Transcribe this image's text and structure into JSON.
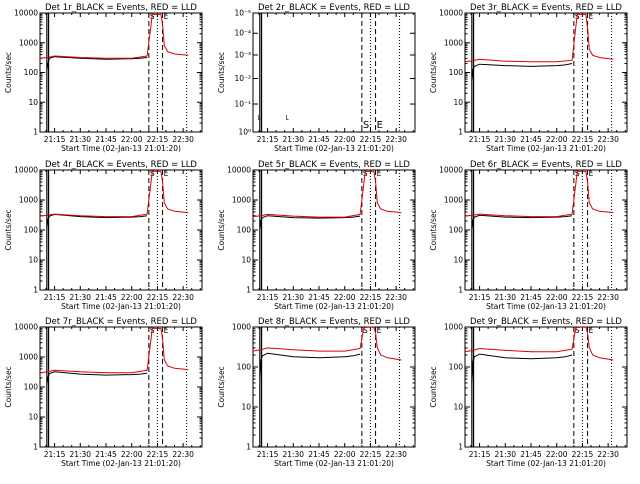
{
  "figure": {
    "xtick_labels": [
      "21:15",
      "21:30",
      "21:45",
      "22:00",
      "22:15",
      "22:30"
    ],
    "xtick_minutes": [
      0,
      15,
      30,
      45,
      60,
      75
    ],
    "xlabel": "Start Time (02-Jan-13 21:01:20)",
    "ylabel": "Counts/sec",
    "series_colors": {
      "black": "#000000",
      "red": "#dd0000"
    },
    "markers": {
      "start_label": "S",
      "end_label": "E"
    }
  },
  "chart_data": [
    {
      "type": "line",
      "title": "Det 1r_BLACK = Events, RED = LLD",
      "ylog": true,
      "ylim": [
        1,
        10000
      ],
      "yticks": [
        1,
        10,
        100,
        1000,
        10000
      ],
      "ytick_labels": [
        "1",
        "10",
        "100",
        "1000",
        "10000"
      ],
      "xlim": [
        -8.5,
        86
      ],
      "grid": false,
      "legend": "in title",
      "vlines_solid": [
        -4.5,
        -3.5
      ],
      "vlines_dashed": [
        55,
        63
      ],
      "vlines_dotted": [
        60,
        77
      ],
      "series": [
        {
          "name": "BLACK",
          "color": "black",
          "x": [
            -4.5,
            -3.8,
            -3,
            0,
            15,
            30,
            45,
            50,
            54
          ],
          "y": [
            120,
            210,
            300,
            340,
            300,
            280,
            290,
            300,
            320
          ]
        },
        {
          "name": "RED",
          "color": "red",
          "x": [
            -8.5,
            -4,
            0,
            15,
            30,
            45,
            54,
            56,
            57,
            62,
            63,
            64,
            66,
            70,
            78
          ],
          "y": [
            300,
            320,
            360,
            320,
            300,
            300,
            360,
            3000,
            9000,
            9000,
            4000,
            800,
            500,
            420,
            380
          ]
        }
      ]
    },
    {
      "type": "line",
      "title": "Det 2r_BLACK = Events, RED = LLD",
      "ylog": true,
      "ylim": [
        1,
        1.5
      ],
      "yticks": [
        1.0,
        1.1,
        1.2,
        1.3,
        1.4,
        1.5
      ],
      "ytick_labels": [
        "10⁰",
        "10⁻¹",
        "10⁻²",
        "10⁻³",
        "10⁻⁴",
        "10⁻⁵"
      ],
      "xlim": [
        -8.5,
        86
      ],
      "grid": false,
      "legend": "in title",
      "vlines_solid": [
        -4.5,
        -3.5
      ],
      "vlines_dashed": [
        55,
        63
      ],
      "vlines_dotted": [
        60,
        77
      ],
      "series": []
    },
    {
      "type": "line",
      "title": "Det 3r_BLACK = Events, RED = LLD",
      "ylog": true,
      "ylim": [
        1,
        10000
      ],
      "yticks": [
        1,
        10,
        100,
        1000,
        10000
      ],
      "ytick_labels": [
        "1",
        "10",
        "100",
        "1000",
        "10000"
      ],
      "xlim": [
        -8.5,
        86
      ],
      "grid": false,
      "legend": "in title",
      "vlines_solid": [
        -4.5,
        -3.5
      ],
      "vlines_dashed": [
        55,
        63
      ],
      "vlines_dotted": [
        60,
        77
      ],
      "series": [
        {
          "name": "BLACK",
          "color": "black",
          "x": [
            -4.5,
            -3.8,
            -3,
            0,
            15,
            30,
            45,
            50,
            54
          ],
          "y": [
            50,
            130,
            160,
            190,
            170,
            160,
            170,
            180,
            200
          ]
        },
        {
          "name": "RED",
          "color": "red",
          "x": [
            -8.5,
            -4,
            0,
            15,
            30,
            45,
            54,
            56,
            57,
            62,
            63,
            64,
            66,
            70,
            78
          ],
          "y": [
            230,
            250,
            280,
            240,
            230,
            230,
            260,
            3000,
            9000,
            9000,
            3000,
            600,
            380,
            320,
            280
          ]
        }
      ]
    },
    {
      "type": "line",
      "title": "Det 4r_BLACK = Events, RED = LLD",
      "ylog": true,
      "ylim": [
        1,
        10000
      ],
      "yticks": [
        1,
        10,
        100,
        1000,
        10000
      ],
      "ytick_labels": [
        "1",
        "10",
        "100",
        "1000",
        "10000"
      ],
      "xlim": [
        -8.5,
        86
      ],
      "grid": false,
      "legend": "in title",
      "vlines_solid": [
        -4.5,
        -3.5
      ],
      "vlines_dashed": [
        55,
        63
      ],
      "vlines_dotted": [
        60,
        77
      ],
      "series": [
        {
          "name": "BLACK",
          "color": "black",
          "x": [
            -4.5,
            -3.8,
            -3,
            0,
            15,
            30,
            45,
            50,
            54
          ],
          "y": [
            120,
            230,
            290,
            330,
            280,
            260,
            270,
            280,
            300
          ]
        },
        {
          "name": "RED",
          "color": "red",
          "x": [
            -8.5,
            -4,
            0,
            15,
            30,
            45,
            54,
            56,
            57,
            62,
            63,
            64,
            66,
            70,
            78
          ],
          "y": [
            290,
            310,
            340,
            300,
            280,
            280,
            340,
            3000,
            9000,
            9000,
            4000,
            800,
            500,
            420,
            380
          ]
        }
      ]
    },
    {
      "type": "line",
      "title": "Det 5r_BLACK = Events, RED = LLD",
      "ylog": true,
      "ylim": [
        1,
        10000
      ],
      "yticks": [
        1,
        10,
        100,
        1000,
        10000
      ],
      "ytick_labels": [
        "1",
        "10",
        "100",
        "1000",
        "10000"
      ],
      "xlim": [
        -8.5,
        86
      ],
      "grid": false,
      "legend": "in title",
      "vlines_solid": [
        -4.5,
        -3.5
      ],
      "vlines_dashed": [
        55,
        63
      ],
      "vlines_dotted": [
        60,
        77
      ],
      "series": [
        {
          "name": "BLACK",
          "color": "black",
          "x": [
            -4.5,
            -3.8,
            -3,
            0,
            15,
            30,
            45,
            50,
            54
          ],
          "y": [
            100,
            210,
            260,
            300,
            260,
            250,
            260,
            270,
            290
          ]
        },
        {
          "name": "RED",
          "color": "red",
          "x": [
            -8.5,
            -4,
            0,
            15,
            30,
            45,
            54,
            56,
            57,
            62,
            63,
            64,
            66,
            70,
            78
          ],
          "y": [
            280,
            300,
            330,
            290,
            270,
            270,
            330,
            3000,
            9000,
            9000,
            4000,
            800,
            500,
            420,
            380
          ]
        }
      ]
    },
    {
      "type": "line",
      "title": "Det 6r_BLACK = Events, RED = LLD",
      "ylog": true,
      "ylim": [
        1,
        10000
      ],
      "yticks": [
        1,
        10,
        100,
        1000,
        10000
      ],
      "ytick_labels": [
        "1",
        "10",
        "100",
        "1000",
        "10000"
      ],
      "xlim": [
        -8.5,
        86
      ],
      "grid": false,
      "legend": "in title",
      "vlines_solid": [
        -4.5,
        -3.5
      ],
      "vlines_dashed": [
        55,
        63
      ],
      "vlines_dotted": [
        60,
        77
      ],
      "series": [
        {
          "name": "BLACK",
          "color": "black",
          "x": [
            -4.5,
            -3.8,
            -3,
            0,
            15,
            30,
            45,
            50,
            54
          ],
          "y": [
            100,
            220,
            270,
            310,
            270,
            260,
            270,
            280,
            300
          ]
        },
        {
          "name": "RED",
          "color": "red",
          "x": [
            -8.5,
            -4,
            0,
            15,
            30,
            45,
            54,
            56,
            57,
            62,
            63,
            64,
            66,
            70,
            78
          ],
          "y": [
            290,
            310,
            340,
            300,
            280,
            280,
            340,
            3000,
            9000,
            9000,
            4000,
            800,
            500,
            420,
            380
          ]
        }
      ]
    },
    {
      "type": "line",
      "title": "Det 7r_BLACK = Events, RED = LLD",
      "ylog": true,
      "ylim": [
        1,
        10000
      ],
      "yticks": [
        1,
        10,
        100,
        1000,
        10000
      ],
      "ytick_labels": [
        "1",
        "10",
        "100",
        "1000",
        "10000"
      ],
      "xlim": [
        -8.5,
        86
      ],
      "grid": false,
      "legend": "in title",
      "vlines_solid": [
        -4.5,
        -3.5
      ],
      "vlines_dashed": [
        55,
        63
      ],
      "vlines_dotted": [
        60,
        77
      ],
      "series": [
        {
          "name": "BLACK",
          "color": "black",
          "x": [
            -4.5,
            -3.8,
            -3,
            0,
            15,
            30,
            45,
            50,
            54
          ],
          "y": [
            120,
            220,
            280,
            320,
            270,
            250,
            260,
            270,
            290
          ]
        },
        {
          "name": "RED",
          "color": "red",
          "x": [
            -8.5,
            -4,
            0,
            15,
            30,
            45,
            54,
            56,
            57,
            62,
            63,
            64,
            66,
            70,
            78
          ],
          "y": [
            300,
            320,
            360,
            320,
            300,
            300,
            360,
            3000,
            9000,
            9000,
            4000,
            800,
            500,
            420,
            380
          ]
        }
      ]
    },
    {
      "type": "line",
      "title": "Det 8r_BLACK = Events, RED = LLD",
      "ylog": true,
      "ylim": [
        1,
        1000
      ],
      "yticks": [
        1,
        10,
        100,
        1000
      ],
      "ytick_labels": [
        "1",
        "10",
        "100",
        "1000"
      ],
      "xlim": [
        -8.5,
        86
      ],
      "grid": false,
      "legend": "in title",
      "vlines_solid": [
        -4.5,
        -3.5
      ],
      "vlines_dashed": [
        55,
        63
      ],
      "vlines_dotted": [
        60,
        77
      ],
      "series": [
        {
          "name": "BLACK",
          "color": "black",
          "x": [
            -4.5,
            -3.8,
            -3,
            0,
            15,
            30,
            45,
            50,
            54
          ],
          "y": [
            50,
            150,
            190,
            220,
            180,
            170,
            180,
            190,
            210
          ]
        },
        {
          "name": "RED",
          "color": "red",
          "x": [
            -8.5,
            -4,
            0,
            15,
            30,
            45,
            54,
            56,
            57,
            62,
            63,
            64,
            66,
            70,
            78
          ],
          "y": [
            250,
            270,
            300,
            270,
            250,
            250,
            290,
            900,
            990,
            990,
            700,
            300,
            200,
            170,
            150
          ]
        }
      ]
    },
    {
      "type": "line",
      "title": "Det 9r_BLACK = Events, RED = LLD",
      "ylog": true,
      "ylim": [
        1,
        1000
      ],
      "yticks": [
        1,
        10,
        100,
        1000
      ],
      "ytick_labels": [
        "1",
        "10",
        "100",
        "1000"
      ],
      "xlim": [
        -8.5,
        86
      ],
      "grid": false,
      "legend": "in title",
      "vlines_solid": [
        -4.5,
        -3.5
      ],
      "vlines_dashed": [
        55,
        63
      ],
      "vlines_dotted": [
        60,
        77
      ],
      "series": [
        {
          "name": "BLACK",
          "color": "black",
          "x": [
            -4.5,
            -3.8,
            -3,
            0,
            15,
            30,
            45,
            50,
            54
          ],
          "y": [
            40,
            140,
            180,
            210,
            170,
            160,
            170,
            180,
            200
          ]
        },
        {
          "name": "RED",
          "color": "red",
          "x": [
            -8.5,
            -4,
            0,
            15,
            30,
            45,
            54,
            56,
            57,
            62,
            63,
            64,
            66,
            70,
            78
          ],
          "y": [
            240,
            260,
            290,
            260,
            240,
            240,
            280,
            900,
            990,
            990,
            700,
            300,
            200,
            170,
            150
          ]
        }
      ]
    }
  ]
}
